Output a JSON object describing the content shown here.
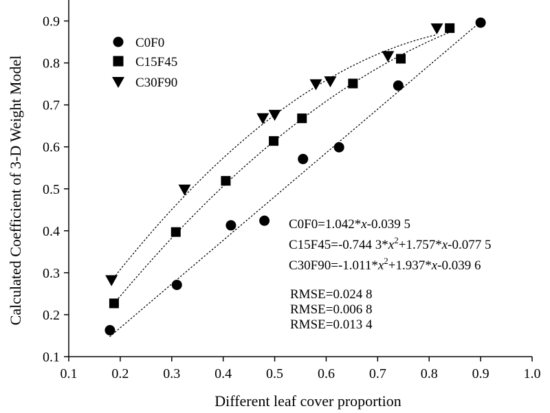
{
  "chart_data": {
    "type": "scatter",
    "xlabel": "Different leaf cover proportion",
    "ylabel": "Calculated Coefficient of 3-D Weight Model",
    "xlim": [
      0.1,
      1.0
    ],
    "ylim": [
      0.1,
      0.95
    ],
    "x_ticks": [
      "0.1",
      "0.2",
      "0.3",
      "0.4",
      "0.5",
      "0.6",
      "0.7",
      "0.8",
      "0.9",
      "1.0"
    ],
    "y_ticks": [
      "0.1",
      "0.2",
      "0.3",
      "0.4",
      "0.5",
      "0.6",
      "0.7",
      "0.8",
      "0.9"
    ],
    "grid": false,
    "legend_position": "top-left",
    "series": [
      {
        "name": "C0F0",
        "marker": "circle",
        "points": [
          [
            0.18,
            0.163
          ],
          [
            0.31,
            0.271
          ],
          [
            0.415,
            0.413
          ],
          [
            0.48,
            0.424
          ],
          [
            0.555,
            0.571
          ],
          [
            0.625,
            0.599
          ],
          [
            0.74,
            0.746
          ],
          [
            0.9,
            0.896
          ]
        ],
        "fit": {
          "form": "linear",
          "a": 0,
          "b": 1.042,
          "c": -0.0395,
          "x_range": [
            0.18,
            0.9
          ]
        }
      },
      {
        "name": "C15F45",
        "marker": "square",
        "points": [
          [
            0.188,
            0.227
          ],
          [
            0.308,
            0.397
          ],
          [
            0.405,
            0.519
          ],
          [
            0.498,
            0.614
          ],
          [
            0.553,
            0.668
          ],
          [
            0.652,
            0.751
          ],
          [
            0.745,
            0.81
          ],
          [
            0.84,
            0.883
          ]
        ],
        "fit": {
          "form": "quadratic",
          "a": -0.7443,
          "b": 1.757,
          "c": -0.0775,
          "x_range": [
            0.188,
            0.84
          ]
        }
      },
      {
        "name": "C30F90",
        "marker": "triangle-down",
        "points": [
          [
            0.183,
            0.281
          ],
          [
            0.325,
            0.497
          ],
          [
            0.477,
            0.667
          ],
          [
            0.5,
            0.675
          ],
          [
            0.58,
            0.748
          ],
          [
            0.608,
            0.755
          ],
          [
            0.72,
            0.815
          ],
          [
            0.815,
            0.881
          ]
        ],
        "fit": {
          "form": "quadratic",
          "a": -1.011,
          "b": 1.937,
          "c": -0.0396,
          "x_range": [
            0.183,
            0.815
          ]
        }
      }
    ],
    "annotations": {
      "eq_c0f0": [
        "C0F0=1.042*",
        "x",
        "-0.039 5"
      ],
      "eq_c15f45": [
        "C15F45=-0.744 3*",
        "x",
        "2",
        "+1.757*",
        "x",
        "-0.077 5"
      ],
      "eq_c30f90": [
        "C30F90=-1.011*",
        "x",
        "2",
        "+1.937*",
        "x",
        "-0.039 6"
      ],
      "rmse": [
        "RMSE=0.024 8",
        "RMSE=0.006 8",
        "RMSE=0.013 4"
      ]
    }
  }
}
